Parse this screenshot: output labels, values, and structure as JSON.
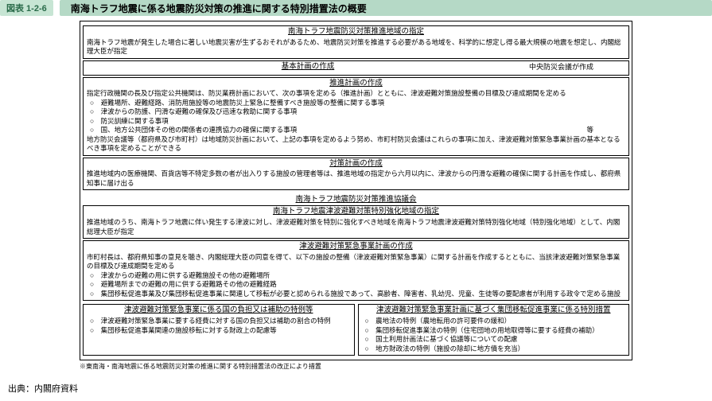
{
  "header": {
    "tag": "図表 1-2-6",
    "title": "南海トラフ地震に係る地震防災対策の推進に関する特別措置法の概要"
  },
  "sec1": {
    "title": "南海トラフ地震防災対策推進地域の指定",
    "body": "南海トラフ地震が発生した場合に著しい地震災害が生ずるおそれがあるため、地震防災対策を推進する必要がある地域を、科学的に想定し得る最大規模の地震を想定し、内閣総理大臣が指定"
  },
  "sec2": {
    "title": "基本計画の作成",
    "note": "中央防災会議が作成"
  },
  "sec3": {
    "title": "推進計画の作成",
    "intro": "指定行政機関の長及び指定公共機関は、防災業務計画において、次の事項を定める（推進計画）とともに、津波避難対策施設整備の目標及び達成期間を定める",
    "b1": "○　避難場所、避難経路、消防用施設等の地震防災上緊急に整備すべき施設等の整備に関する事項",
    "b2": "○　津波からの防護、円滑な避難の確保及び迅速な救助に関する事項",
    "b3": "○　防災訓練に関する事項",
    "b4": "○　国、地方公共団体その他の関係者の連携協力の確保に関する事項",
    "tail": "等",
    "body2": "地方防災会議等（都府県及び市町村）は地域防災計画において、上記の事項を定めるよう努め、市町村防災会議はこれらの事項に加え、津波避難対策緊急事業計画の基本となるべき事項を定めることができる"
  },
  "sec4": {
    "title": "対策計画の作成",
    "body": "推進地域内の医療機関、百貨店等不特定多数の者が出入りする施設の管理者等は、推進地域の指定から六月以内に、津波からの円滑な避難の確保に関する計画を作成し、都府県知事に届け出る"
  },
  "standalone": "南海トラフ地震防災対策推進協議会",
  "sec5": {
    "title": "南海トラフ地震津波避難対策特別強化地域の指定",
    "body": "推進地域のうち、南海トラフ地震に伴い発生する津波に対し、津波避難対策を特別に強化すべき地域を南海トラフ地震津波避難対策特別強化地域（特別強化地域）として、内閣総理大臣が指定"
  },
  "sec6": {
    "title": "津波避難対策緊急事業計画の作成",
    "intro": "市町村長は、都府県知事の意見を聴き、内閣総理大臣の同意を得て、以下の施設の整備（津波避難対策緊急事業）に関する計画を作成するとともに、当該津波避難対策緊急事業の目標及び達成期間を定める",
    "b1": "○　津波からの避難の用に供する避難施設その他の避難場所",
    "b2": "○　避難場所までの避難の用に供する避難路その他の避難経路",
    "b3": "○　集団移転促進事業及び集団移転促進事業に関連して移転が必要と認められる施設であって、高齢者、障害者、乳幼児、児童、生徒等の要配慮者が利用する政令で定める施設"
  },
  "sec7": {
    "title": "津波避難対策緊急事業に係る国の負担又は補助の特例等",
    "b1": "○　津波避難対策緊急事業に要する経費に対する国の負担又は補助の割合の特例",
    "b2": "○　集団移転促進事業関連の施設移転に対する財政上の配慮等"
  },
  "sec8": {
    "title": "津波避難対策緊急事業計画に基づく集団移転促進事業に係る特別措置",
    "b1": "○　農地法の特例（農地転用の許可要件の緩和）",
    "b2": "○　集団移転促進事業法の特例（住宅団地の用地取得等に要する経費の補助）",
    "b3": "○　国土利用計画法に基づく協議等についての配慮",
    "b4": "○　地方財政法の特例（施設の除却に地方債を充当）"
  },
  "footnote": "※東南海・南海地震に係る地震防災対策の推進に関する特別措置法の改正により措置",
  "source": "出典：内閣府資料"
}
